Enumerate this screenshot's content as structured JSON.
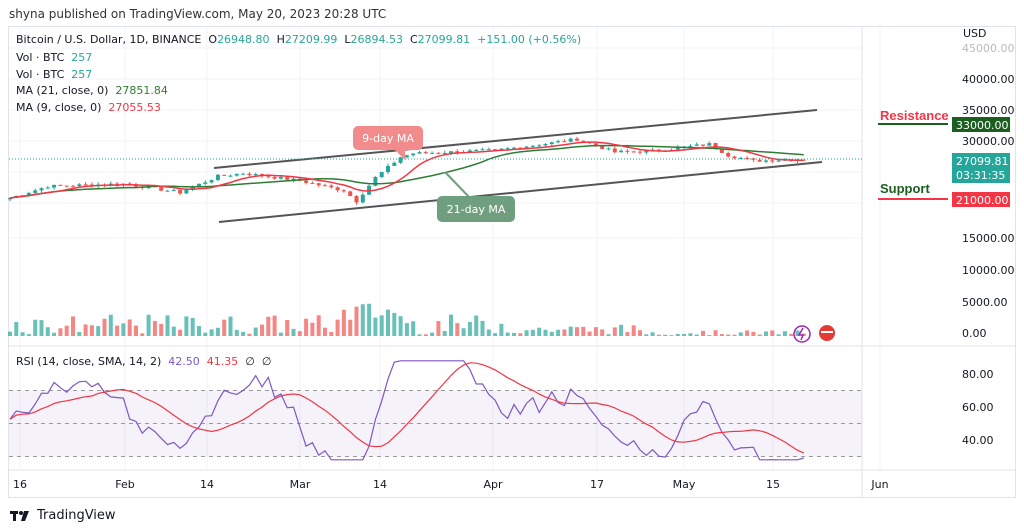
{
  "publisher_line": "shyna published on TradingView.com, May 20, 2023 20:28 UTC",
  "legend": {
    "symbol": "Bitcoin / U.S. Dollar, 1D, BINANCE",
    "o_label": "O",
    "open": "26948.80",
    "h_label": "H",
    "high": "27209.99",
    "l_label": "L",
    "low": "26894.53",
    "c_label": "C",
    "close": "27099.81",
    "change": "+151.00 (+0.56%)",
    "vol1_label": "Vol · BTC",
    "vol1": "257",
    "vol2_label": "Vol · BTC",
    "vol2": "257",
    "ma21_label": "MA (21, close, 0)",
    "ma21": "27851.84",
    "ma9_label": "MA (9, close, 0)",
    "ma9": "27055.53",
    "rsi_label": "RSI (14, close, SMA, 14, 2)",
    "rsi": "42.50",
    "rsi_sma": "41.35",
    "rsi_extra1": "∅",
    "rsi_extra2": "∅"
  },
  "currency": "USD",
  "price_axis": [
    "45000.00",
    "40000.00",
    "35000.00",
    "30000.00",
    "15000.00"
  ],
  "volume_axis": [
    "10000.00",
    "5000.00",
    "0.00"
  ],
  "rsi_axis": [
    "80.00",
    "60.00",
    "40.00"
  ],
  "time_axis": [
    "16",
    "Feb",
    "14",
    "Mar",
    "14",
    "Apr",
    "17",
    "May",
    "15",
    "Jun"
  ],
  "last_price": "27099.81",
  "countdown": "03:31:35",
  "resistance": {
    "label": "Resistance",
    "value": "33000.00",
    "color": "#1b5e20"
  },
  "support": {
    "label": "Support",
    "value": "21000.00",
    "color": "#f23645"
  },
  "annotations": {
    "ma9": "9-day MA",
    "ma21": "21-day MA"
  },
  "colors": {
    "up": "#26a69a",
    "down": "#ef5350",
    "ma9": "#f23645",
    "ma21": "#2e7d32",
    "rsi": "#7e57c2",
    "rsi_sma": "#f23645"
  },
  "chart_data": {
    "type": "candlestick",
    "approx_closes": [
      [
        "2023-01-14",
        20800
      ],
      [
        "2023-01-20",
        22700
      ],
      [
        "2023-02-01",
        23100
      ],
      [
        "2023-02-10",
        21700
      ],
      [
        "2023-02-16",
        24300
      ],
      [
        "2023-02-20",
        24800
      ],
      [
        "2023-03-01",
        23600
      ],
      [
        "2023-03-08",
        22000
      ],
      [
        "2023-03-10",
        20300
      ],
      [
        "2023-03-13",
        24100
      ],
      [
        "2023-03-17",
        27400
      ],
      [
        "2023-03-19",
        28000
      ],
      [
        "2023-04-01",
        28500
      ],
      [
        "2023-04-10",
        29700
      ],
      [
        "2023-04-14",
        30300
      ],
      [
        "2023-04-20",
        28200
      ],
      [
        "2023-04-26",
        28400
      ],
      [
        "2023-05-05",
        29500
      ],
      [
        "2023-05-08",
        27700
      ],
      [
        "2023-05-12",
        26800
      ],
      [
        "2023-05-20",
        27100
      ]
    ]
  },
  "footer": {
    "brand": "TradingView"
  }
}
